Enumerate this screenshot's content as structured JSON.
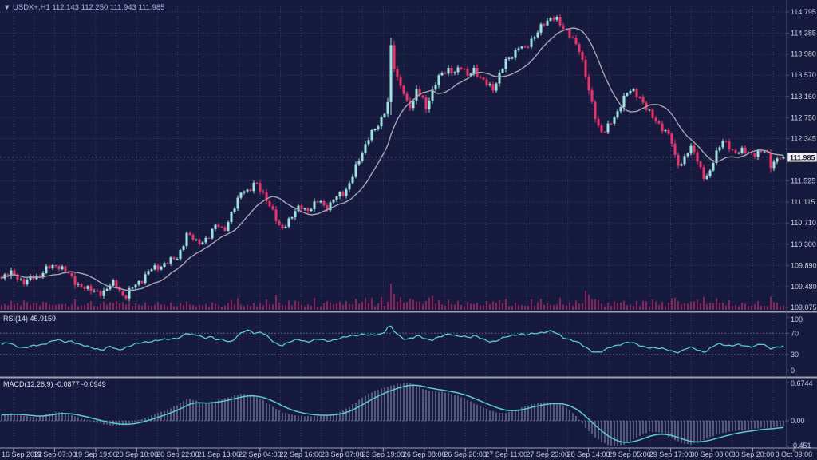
{
  "header": {
    "dropdown_icon": "▼",
    "symbol_line": "USDX+,H1  112.143 112.250 111.943 111.985"
  },
  "panels": {
    "rsi": {
      "label": "RSI(14) 45.9159",
      "value": 45.9159,
      "levels": [
        100,
        70,
        30,
        0
      ]
    },
    "macd": {
      "label": "MACD(12,26,9) -0.0877 -0.0949",
      "main_value": -0.0877,
      "signal_value": -0.0949,
      "axis_labels": [
        "0.6744",
        "0.00",
        "-0.451"
      ],
      "axis_values": [
        0.6744,
        0.0,
        -0.451
      ]
    }
  },
  "price_axis": {
    "labels": [
      "114.795",
      "114.385",
      "113.980",
      "113.570",
      "113.160",
      "112.750",
      "112.345",
      "111.525",
      "111.115",
      "110.710",
      "110.300",
      "109.890",
      "109.480",
      "109.075"
    ],
    "values": [
      114.795,
      114.385,
      113.98,
      113.57,
      113.16,
      112.75,
      112.345,
      111.525,
      111.115,
      110.71,
      110.3,
      109.89,
      109.48,
      109.075
    ],
    "gridline_values": [
      114.795,
      114.385,
      113.98,
      113.57,
      113.16,
      112.75,
      112.345,
      111.935,
      111.525,
      111.115,
      110.71,
      110.3,
      109.89,
      109.48,
      109.075
    ],
    "current_price_label": "111.985",
    "current_price": 111.985
  },
  "time_axis": {
    "labels": [
      "16 Sep 2022",
      "19 Sep 07:00",
      "19 Sep 19:00",
      "20 Sep 10:00",
      "20 Sep 22:00",
      "21 Sep 13:00",
      "22 Sep 04:00",
      "22 Sep 16:00",
      "23 Sep 07:00",
      "23 Sep 19:00",
      "26 Sep 08:00",
      "26 Sep 20:00",
      "27 Sep 11:00",
      "27 Sep 23:00",
      "28 Sep 14:00",
      "29 Sep 05:00",
      "29 Sep 17:00",
      "30 Sep 08:00",
      "30 Sep 20:00",
      "3 Oct 09:00"
    ],
    "first_tick_x": 17,
    "tick_spacing": 51.47
  },
  "chart_data": {
    "type": "candlestick",
    "title": "USDX+ H1",
    "ohlc_current": {
      "open": 112.143,
      "high": 112.25,
      "low": 111.943,
      "close": 111.985
    },
    "candle_count": 246,
    "candle_px_spacing": 4,
    "ylim_main": [
      109.075,
      114.795
    ],
    "price_path": [
      [
        0,
        109.62
      ],
      [
        8,
        109.7
      ],
      [
        16,
        109.76
      ],
      [
        24,
        109.62
      ],
      [
        32,
        109.55
      ],
      [
        40,
        109.65
      ],
      [
        48,
        109.7
      ],
      [
        56,
        109.78
      ],
      [
        64,
        109.85
      ],
      [
        72,
        109.92
      ],
      [
        80,
        109.8
      ],
      [
        88,
        109.68
      ],
      [
        96,
        109.55
      ],
      [
        104,
        109.46
      ],
      [
        112,
        109.42
      ],
      [
        120,
        109.38
      ],
      [
        128,
        109.34
      ],
      [
        136,
        109.48
      ],
      [
        144,
        109.55
      ],
      [
        152,
        109.34
      ],
      [
        158,
        109.3
      ],
      [
        166,
        109.44
      ],
      [
        174,
        109.58
      ],
      [
        182,
        109.7
      ],
      [
        190,
        109.8
      ],
      [
        198,
        109.87
      ],
      [
        206,
        109.92
      ],
      [
        214,
        109.98
      ],
      [
        222,
        110.05
      ],
      [
        228,
        110.22
      ],
      [
        234,
        110.5
      ],
      [
        240,
        110.44
      ],
      [
        248,
        110.3
      ],
      [
        256,
        110.38
      ],
      [
        264,
        110.5
      ],
      [
        272,
        110.68
      ],
      [
        280,
        110.58
      ],
      [
        288,
        110.8
      ],
      [
        296,
        111.05
      ],
      [
        304,
        111.42
      ],
      [
        312,
        111.3
      ],
      [
        320,
        111.48
      ],
      [
        328,
        111.35
      ],
      [
        336,
        111.1
      ],
      [
        344,
        110.85
      ],
      [
        352,
        110.58
      ],
      [
        360,
        110.72
      ],
      [
        368,
        110.9
      ],
      [
        376,
        111.02
      ],
      [
        384,
        110.96
      ],
      [
        392,
        111.05
      ],
      [
        400,
        111.12
      ],
      [
        408,
        111.02
      ],
      [
        416,
        111.12
      ],
      [
        424,
        111.22
      ],
      [
        432,
        111.32
      ],
      [
        440,
        111.55
      ],
      [
        448,
        111.85
      ],
      [
        456,
        112.15
      ],
      [
        464,
        112.45
      ],
      [
        472,
        112.55
      ],
      [
        480,
        112.75
      ],
      [
        486,
        113.05
      ],
      [
        490,
        114.15
      ],
      [
        494,
        113.75
      ],
      [
        498,
        113.48
      ],
      [
        504,
        113.28
      ],
      [
        510,
        113.05
      ],
      [
        516,
        113.0
      ],
      [
        522,
        113.28
      ],
      [
        528,
        113.12
      ],
      [
        534,
        112.95
      ],
      [
        540,
        113.22
      ],
      [
        546,
        113.42
      ],
      [
        554,
        113.58
      ],
      [
        562,
        113.7
      ],
      [
        570,
        113.62
      ],
      [
        578,
        113.72
      ],
      [
        586,
        113.58
      ],
      [
        594,
        113.68
      ],
      [
        602,
        113.5
      ],
      [
        610,
        113.4
      ],
      [
        618,
        113.32
      ],
      [
        626,
        113.58
      ],
      [
        634,
        113.82
      ],
      [
        642,
        113.98
      ],
      [
        650,
        114.12
      ],
      [
        658,
        114.05
      ],
      [
        666,
        114.28
      ],
      [
        674,
        114.42
      ],
      [
        682,
        114.55
      ],
      [
        690,
        114.68
      ],
      [
        696,
        114.72
      ],
      [
        702,
        114.55
      ],
      [
        710,
        114.4
      ],
      [
        718,
        114.28
      ],
      [
        726,
        114.08
      ],
      [
        732,
        113.7
      ],
      [
        738,
        113.25
      ],
      [
        744,
        112.9
      ],
      [
        750,
        112.6
      ],
      [
        756,
        112.42
      ],
      [
        762,
        112.55
      ],
      [
        768,
        112.72
      ],
      [
        776,
        112.95
      ],
      [
        784,
        113.15
      ],
      [
        792,
        113.32
      ],
      [
        800,
        113.18
      ],
      [
        808,
        112.95
      ],
      [
        816,
        112.82
      ],
      [
        824,
        112.65
      ],
      [
        832,
        112.5
      ],
      [
        840,
        112.4
      ],
      [
        846,
        111.98
      ],
      [
        852,
        111.82
      ],
      [
        860,
        112.05
      ],
      [
        868,
        112.15
      ],
      [
        876,
        111.88
      ],
      [
        882,
        111.62
      ],
      [
        888,
        111.55
      ],
      [
        894,
        111.9
      ],
      [
        900,
        112.2
      ],
      [
        906,
        112.32
      ],
      [
        912,
        112.18
      ],
      [
        920,
        112.05
      ],
      [
        928,
        112.15
      ],
      [
        936,
        112.08
      ],
      [
        944,
        112.0
      ],
      [
        952,
        112.1
      ],
      [
        960,
        112.15
      ],
      [
        966,
        111.8
      ],
      [
        972,
        111.88
      ],
      [
        978,
        112.02
      ],
      [
        984,
        111.985
      ]
    ],
    "rsi_path": [
      [
        0,
        48
      ],
      [
        10,
        52
      ],
      [
        20,
        46
      ],
      [
        30,
        43
      ],
      [
        42,
        46
      ],
      [
        52,
        48
      ],
      [
        62,
        54
      ],
      [
        72,
        58
      ],
      [
        80,
        53
      ],
      [
        90,
        56
      ],
      [
        98,
        50
      ],
      [
        108,
        45
      ],
      [
        118,
        42
      ],
      [
        128,
        39
      ],
      [
        138,
        45
      ],
      [
        148,
        38
      ],
      [
        158,
        44
      ],
      [
        168,
        49
      ],
      [
        178,
        52
      ],
      [
        188,
        55
      ],
      [
        198,
        57
      ],
      [
        208,
        58
      ],
      [
        218,
        60
      ],
      [
        228,
        64
      ],
      [
        234,
        70
      ],
      [
        240,
        65
      ],
      [
        248,
        68
      ],
      [
        256,
        61
      ],
      [
        264,
        64
      ],
      [
        272,
        56
      ],
      [
        280,
        59
      ],
      [
        288,
        53
      ],
      [
        296,
        62
      ],
      [
        304,
        72
      ],
      [
        312,
        76
      ],
      [
        320,
        70
      ],
      [
        328,
        73
      ],
      [
        336,
        62
      ],
      [
        344,
        52
      ],
      [
        352,
        47
      ],
      [
        360,
        52
      ],
      [
        368,
        56
      ],
      [
        376,
        58
      ],
      [
        384,
        54
      ],
      [
        392,
        57
      ],
      [
        400,
        59
      ],
      [
        408,
        55
      ],
      [
        416,
        57
      ],
      [
        424,
        60
      ],
      [
        432,
        62
      ],
      [
        440,
        65
      ],
      [
        448,
        67
      ],
      [
        456,
        69
      ],
      [
        464,
        65
      ],
      [
        472,
        67
      ],
      [
        480,
        69
      ],
      [
        488,
        87
      ],
      [
        494,
        74
      ],
      [
        500,
        64
      ],
      [
        508,
        58
      ],
      [
        516,
        62
      ],
      [
        524,
        66
      ],
      [
        532,
        59
      ],
      [
        540,
        56
      ],
      [
        548,
        63
      ],
      [
        556,
        66
      ],
      [
        564,
        68
      ],
      [
        572,
        64
      ],
      [
        580,
        66
      ],
      [
        588,
        62
      ],
      [
        596,
        65
      ],
      [
        604,
        59
      ],
      [
        612,
        56
      ],
      [
        620,
        54
      ],
      [
        628,
        59
      ],
      [
        636,
        64
      ],
      [
        644,
        67
      ],
      [
        652,
        69
      ],
      [
        660,
        66
      ],
      [
        668,
        69
      ],
      [
        676,
        71
      ],
      [
        684,
        73
      ],
      [
        692,
        74
      ],
      [
        700,
        67
      ],
      [
        708,
        61
      ],
      [
        716,
        58
      ],
      [
        724,
        53
      ],
      [
        732,
        45
      ],
      [
        740,
        38
      ],
      [
        748,
        34
      ],
      [
        756,
        36
      ],
      [
        764,
        43
      ],
      [
        772,
        47
      ],
      [
        780,
        51
      ],
      [
        788,
        53
      ],
      [
        796,
        50
      ],
      [
        804,
        46
      ],
      [
        812,
        44
      ],
      [
        820,
        42
      ],
      [
        828,
        41
      ],
      [
        836,
        40
      ],
      [
        844,
        36
      ],
      [
        852,
        34
      ],
      [
        860,
        41
      ],
      [
        868,
        44
      ],
      [
        876,
        38
      ],
      [
        884,
        34
      ],
      [
        892,
        43
      ],
      [
        900,
        51
      ],
      [
        908,
        49
      ],
      [
        916,
        46
      ],
      [
        924,
        48
      ],
      [
        932,
        47
      ],
      [
        940,
        45
      ],
      [
        948,
        47
      ],
      [
        956,
        50
      ],
      [
        964,
        41
      ],
      [
        972,
        44
      ],
      [
        980,
        46
      ],
      [
        984,
        45.9
      ]
    ],
    "macd_path": [
      [
        0,
        0.1
      ],
      [
        15,
        0.13
      ],
      [
        30,
        0.09
      ],
      [
        45,
        0.06
      ],
      [
        60,
        0.12
      ],
      [
        75,
        0.16
      ],
      [
        90,
        0.1
      ],
      [
        105,
        0.03
      ],
      [
        120,
        -0.03
      ],
      [
        135,
        -0.07
      ],
      [
        150,
        -0.09
      ],
      [
        165,
        -0.04
      ],
      [
        180,
        0.04
      ],
      [
        195,
        0.12
      ],
      [
        210,
        0.2
      ],
      [
        225,
        0.3
      ],
      [
        235,
        0.4
      ],
      [
        245,
        0.36
      ],
      [
        255,
        0.3
      ],
      [
        265,
        0.33
      ],
      [
        275,
        0.37
      ],
      [
        285,
        0.41
      ],
      [
        295,
        0.45
      ],
      [
        305,
        0.48
      ],
      [
        315,
        0.45
      ],
      [
        325,
        0.4
      ],
      [
        335,
        0.32
      ],
      [
        345,
        0.22
      ],
      [
        355,
        0.14
      ],
      [
        365,
        0.11
      ],
      [
        375,
        0.09
      ],
      [
        385,
        0.08
      ],
      [
        395,
        0.08
      ],
      [
        405,
        0.09
      ],
      [
        415,
        0.11
      ],
      [
        425,
        0.15
      ],
      [
        435,
        0.22
      ],
      [
        445,
        0.32
      ],
      [
        455,
        0.42
      ],
      [
        465,
        0.5
      ],
      [
        475,
        0.56
      ],
      [
        485,
        0.6
      ],
      [
        495,
        0.64
      ],
      [
        505,
        0.67
      ],
      [
        515,
        0.66
      ],
      [
        525,
        0.6
      ],
      [
        535,
        0.54
      ],
      [
        545,
        0.52
      ],
      [
        555,
        0.51
      ],
      [
        565,
        0.48
      ],
      [
        575,
        0.44
      ],
      [
        585,
        0.38
      ],
      [
        595,
        0.3
      ],
      [
        605,
        0.24
      ],
      [
        615,
        0.18
      ],
      [
        625,
        0.14
      ],
      [
        635,
        0.14
      ],
      [
        645,
        0.18
      ],
      [
        655,
        0.24
      ],
      [
        665,
        0.29
      ],
      [
        675,
        0.32
      ],
      [
        685,
        0.33
      ],
      [
        695,
        0.32
      ],
      [
        705,
        0.28
      ],
      [
        715,
        0.18
      ],
      [
        725,
        0.04
      ],
      [
        735,
        -0.14
      ],
      [
        745,
        -0.28
      ],
      [
        755,
        -0.38
      ],
      [
        765,
        -0.44
      ],
      [
        775,
        -0.45
      ],
      [
        785,
        -0.4
      ],
      [
        795,
        -0.32
      ],
      [
        805,
        -0.24
      ],
      [
        815,
        -0.19
      ],
      [
        825,
        -0.2
      ],
      [
        835,
        -0.26
      ],
      [
        845,
        -0.33
      ],
      [
        855,
        -0.4
      ],
      [
        865,
        -0.42
      ],
      [
        875,
        -0.38
      ],
      [
        885,
        -0.32
      ],
      [
        895,
        -0.26
      ],
      [
        905,
        -0.22
      ],
      [
        915,
        -0.19
      ],
      [
        925,
        -0.17
      ],
      [
        935,
        -0.16
      ],
      [
        945,
        -0.14
      ],
      [
        955,
        -0.12
      ],
      [
        965,
        -0.13
      ],
      [
        975,
        -0.1
      ],
      [
        984,
        -0.0877
      ]
    ]
  },
  "colors": {
    "background": "#161b3d",
    "grid": "#353b62",
    "level_line": "#5a6087",
    "bull": "#9fe6e1",
    "bear": "#f23169",
    "ma_line": "#a8a8b2",
    "volume": "#bf2264",
    "indicator_line": "#55ced6",
    "histogram": "#9298b4",
    "divider": "#9aa0ac",
    "axis_border": "#4a5077",
    "price_tag_bg": "#f0f0f4"
  }
}
